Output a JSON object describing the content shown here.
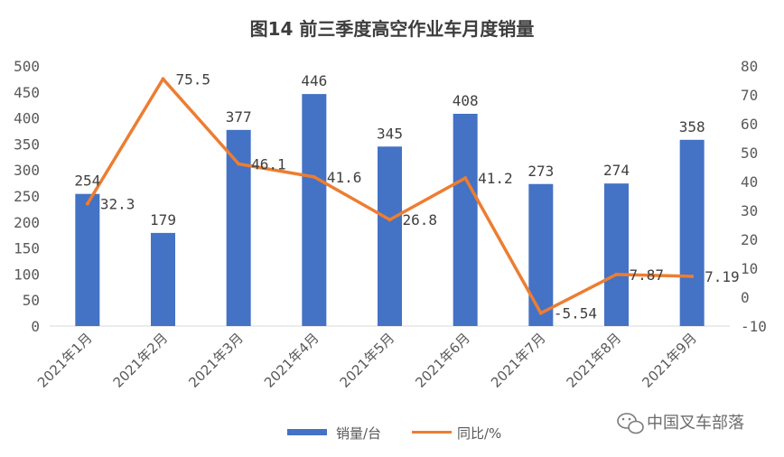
{
  "chart_data": {
    "type": "bar",
    "title": "图14   前三季度高空作业车月度销量",
    "categories": [
      "2021年1月",
      "2021年2月",
      "2021年3月",
      "2021年4月",
      "2021年5月",
      "2021年6月",
      "2021年7月",
      "2021年8月",
      "2021年9月"
    ],
    "series": [
      {
        "name": "销量/台",
        "type": "bar",
        "axis": "left",
        "color": "#4472C4",
        "values": [
          254,
          179,
          377,
          446,
          345,
          408,
          273,
          274,
          358
        ],
        "labels": [
          "254",
          "179",
          "377",
          "446",
          "345",
          "408",
          "273",
          "274",
          "358"
        ]
      },
      {
        "name": "同比/%",
        "type": "line",
        "axis": "right",
        "color": "#ED7D31",
        "values": [
          32.3,
          75.5,
          46.1,
          41.6,
          26.8,
          41.2,
          -5.54,
          7.87,
          7.19
        ],
        "labels": [
          "32.3",
          "75.5",
          "46.1",
          "41.6",
          "26.8",
          "41.2",
          "-5.54",
          "7.87",
          "7.19"
        ]
      }
    ],
    "y_left": {
      "min": 0,
      "max": 500,
      "step": 50,
      "ticks": [
        "0",
        "50",
        "100",
        "150",
        "200",
        "250",
        "300",
        "350",
        "400",
        "450",
        "500"
      ]
    },
    "y_right": {
      "min": -10,
      "max": 80,
      "step": 10,
      "ticks": [
        "-10",
        "0",
        "10",
        "20",
        "30",
        "40",
        "50",
        "60",
        "70",
        "80"
      ]
    },
    "grid": false,
    "legend_position": "bottom"
  },
  "watermark": {
    "text": "中国叉车部落",
    "icon": "wechat-icon"
  }
}
